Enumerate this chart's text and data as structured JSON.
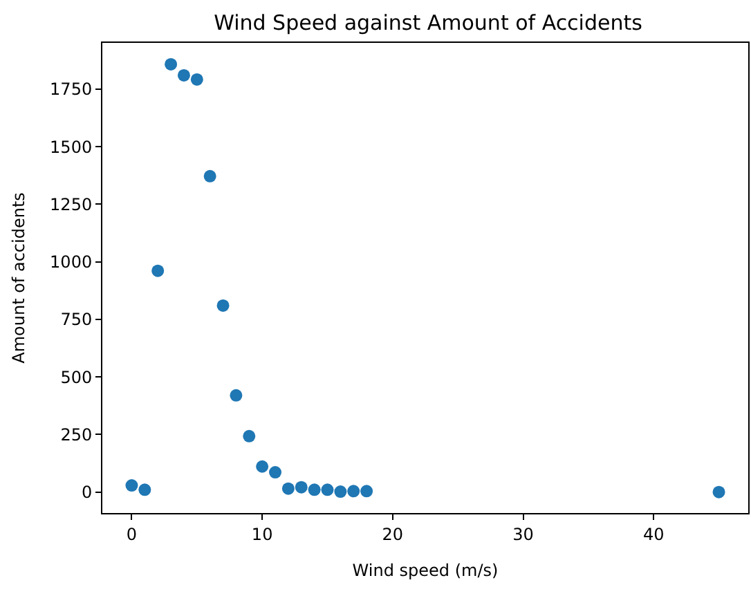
{
  "chart_data": {
    "type": "scatter",
    "title": "Wind Speed against Amount of Accidents",
    "xlabel": "Wind speed (m/s)",
    "ylabel": "Amount of accidents",
    "x": [
      0,
      1,
      2,
      3,
      4,
      5,
      6,
      7,
      8,
      9,
      10,
      11,
      12,
      13,
      14,
      15,
      16,
      17,
      18,
      45
    ],
    "series": [
      {
        "color": "#1f77b4",
        "values": [
          29,
          10,
          961,
          1858,
          1810,
          1792,
          1372,
          810,
          420,
          243,
          111,
          86,
          15,
          21,
          10,
          10,
          2,
          4,
          4,
          0
        ]
      }
    ],
    "xlim": [
      -2.25,
      47.25
    ],
    "xticks": [
      0,
      10,
      20,
      30,
      40
    ],
    "ylim": [
      -91,
      1951
    ],
    "yticks": [
      0,
      250,
      500,
      750,
      1000,
      1250,
      1500,
      1750
    ],
    "marker": "circle"
  }
}
